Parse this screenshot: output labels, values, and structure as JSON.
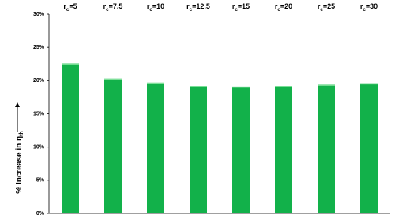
{
  "chart_data": {
    "type": "bar",
    "ylabel": "% Increase in ηth",
    "categories": [
      "rc=5",
      "rc=7.5",
      "rc=10",
      "rc=12.5",
      "rc=15",
      "rc=20",
      "rc=25",
      "rc=30"
    ],
    "values": [
      22.6,
      20.3,
      19.7,
      19.2,
      19.1,
      19.2,
      19.4,
      19.6
    ],
    "color": "#12b14a",
    "ylim": [
      0,
      30
    ],
    "yticks": [
      {
        "value": 0,
        "label": "0%"
      },
      {
        "value": 5,
        "label": "5%"
      },
      {
        "value": 10,
        "label": "10%"
      },
      {
        "value": 15,
        "label": "15%"
      },
      {
        "value": 20,
        "label": "20%"
      },
      {
        "value": 25,
        "label": "25%"
      },
      {
        "value": 30,
        "label": "30%"
      }
    ],
    "grid": false
  }
}
